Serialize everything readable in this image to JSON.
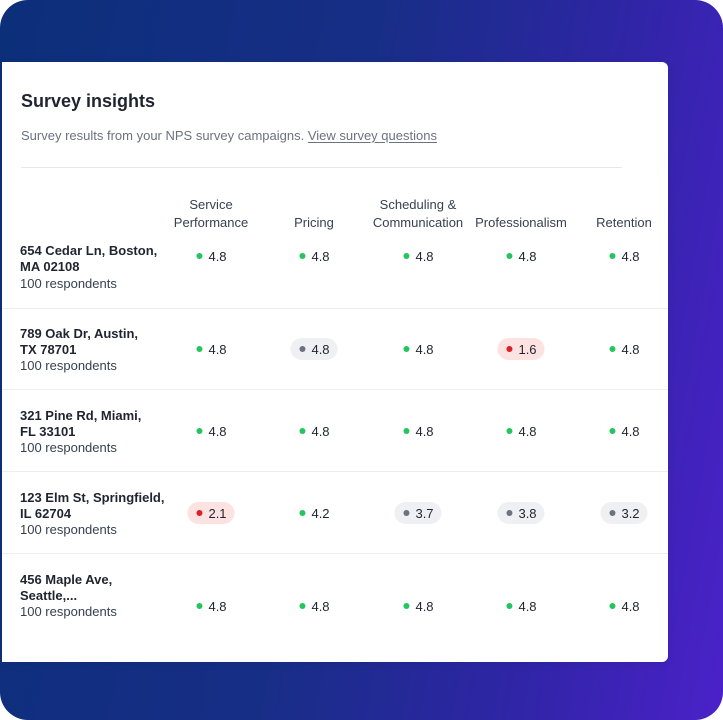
{
  "card": {
    "title": "Survey insights",
    "subtitle": "Survey results from your NPS survey campaigns.",
    "link": "View survey questions"
  },
  "columns": [
    {
      "line1": "Service",
      "line2": "Performance"
    },
    {
      "line1": "",
      "line2": "Pricing"
    },
    {
      "line1": "Scheduling &",
      "line2": "Communication"
    },
    {
      "line1": "",
      "line2": "Professionalism"
    },
    {
      "line1": "",
      "line2": "Retention"
    }
  ],
  "rows": [
    {
      "addr1": "654 Cedar Ln, Boston,",
      "addr2": "MA 02108",
      "respondents": "100 respondents",
      "scores": [
        {
          "v": "4.8",
          "s": "green"
        },
        {
          "v": "4.8",
          "s": "green"
        },
        {
          "v": "4.8",
          "s": "green"
        },
        {
          "v": "4.8",
          "s": "green"
        },
        {
          "v": "4.8",
          "s": "green"
        }
      ]
    },
    {
      "addr1": "789 Oak Dr, Austin,",
      "addr2": "TX 78701",
      "respondents": "100 respondents",
      "scores": [
        {
          "v": "4.8",
          "s": "green"
        },
        {
          "v": "4.8",
          "s": "grey"
        },
        {
          "v": "4.8",
          "s": "green"
        },
        {
          "v": "1.6",
          "s": "red"
        },
        {
          "v": "4.8",
          "s": "green"
        }
      ]
    },
    {
      "addr1": "321 Pine Rd, Miami,",
      "addr2": "FL 33101",
      "respondents": "100 respondents",
      "scores": [
        {
          "v": "4.8",
          "s": "green"
        },
        {
          "v": "4.8",
          "s": "green"
        },
        {
          "v": "4.8",
          "s": "green"
        },
        {
          "v": "4.8",
          "s": "green"
        },
        {
          "v": "4.8",
          "s": "green"
        }
      ]
    },
    {
      "addr1": "123 Elm St, Springfield,",
      "addr2": "IL 62704",
      "respondents": "100 respondents",
      "scores": [
        {
          "v": "2.1",
          "s": "red"
        },
        {
          "v": "4.2",
          "s": "green"
        },
        {
          "v": "3.7",
          "s": "grey"
        },
        {
          "v": "3.8",
          "s": "grey"
        },
        {
          "v": "3.2",
          "s": "grey"
        }
      ]
    },
    {
      "addr1": "456 Maple Ave,",
      "addr2": "Seattle,...",
      "respondents": "100 respondents",
      "scores": [
        {
          "v": "4.8",
          "s": "green"
        },
        {
          "v": "4.8",
          "s": "green"
        },
        {
          "v": "4.8",
          "s": "green"
        },
        {
          "v": "4.8",
          "s": "green"
        },
        {
          "v": "4.8",
          "s": "green"
        }
      ]
    }
  ],
  "colors": {
    "green": "#22c55e",
    "grey": "#6b7280",
    "red": "#e11d27"
  }
}
